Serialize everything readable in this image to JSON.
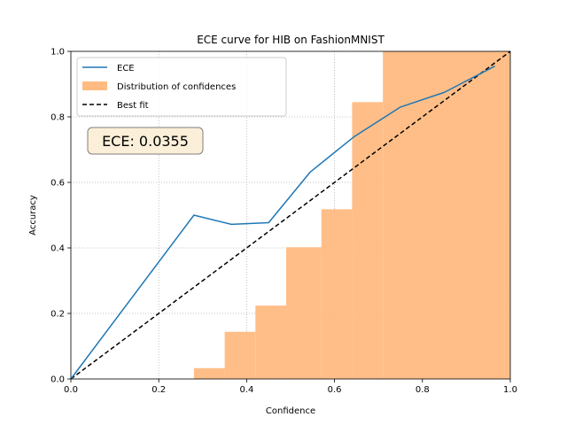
{
  "chart_data": {
    "type": "line",
    "title": "ECE curve for HIB on FashionMNIST",
    "xlabel": "Confidence",
    "ylabel": "Accuracy",
    "xlim": [
      0,
      1
    ],
    "ylim": [
      0,
      1
    ],
    "xticks": [
      "0.0",
      "0.2",
      "0.4",
      "0.6",
      "0.8",
      "1.0"
    ],
    "yticks": [
      "0.0",
      "0.2",
      "0.4",
      "0.6",
      "0.8",
      "1.0"
    ],
    "grid": true,
    "legend_position": "upper-left",
    "series": [
      {
        "name": "ECE",
        "kind": "line",
        "color": "#1f77b4",
        "x": [
          0.0,
          0.28,
          0.365,
          0.45,
          0.545,
          0.645,
          0.75,
          0.85,
          0.965
        ],
        "y": [
          0.0,
          0.5,
          0.472,
          0.477,
          0.632,
          0.74,
          0.83,
          0.875,
          0.955
        ]
      },
      {
        "name": "Distribution of confidences",
        "kind": "bar",
        "color": "#ffbb82",
        "bins": [
          {
            "x0": 0.28,
            "x1": 0.35,
            "value": 0.033
          },
          {
            "x0": 0.35,
            "x1": 0.42,
            "value": 0.144
          },
          {
            "x0": 0.42,
            "x1": 0.49,
            "value": 0.224
          },
          {
            "x0": 0.49,
            "x1": 0.57,
            "value": 0.402
          },
          {
            "x0": 0.57,
            "x1": 0.64,
            "value": 0.518
          },
          {
            "x0": 0.64,
            "x1": 0.71,
            "value": 0.845
          },
          {
            "x0": 0.71,
            "x1": 1.0,
            "value": 1.0
          }
        ]
      },
      {
        "name": "Best fit",
        "kind": "dashed-line",
        "color": "#000000",
        "x": [
          0,
          1
        ],
        "y": [
          0,
          1
        ]
      }
    ],
    "annotation": {
      "text": "ECE: 0.0355",
      "box_color": "#fbefd9",
      "edge_color": "#7f7f7f"
    }
  }
}
